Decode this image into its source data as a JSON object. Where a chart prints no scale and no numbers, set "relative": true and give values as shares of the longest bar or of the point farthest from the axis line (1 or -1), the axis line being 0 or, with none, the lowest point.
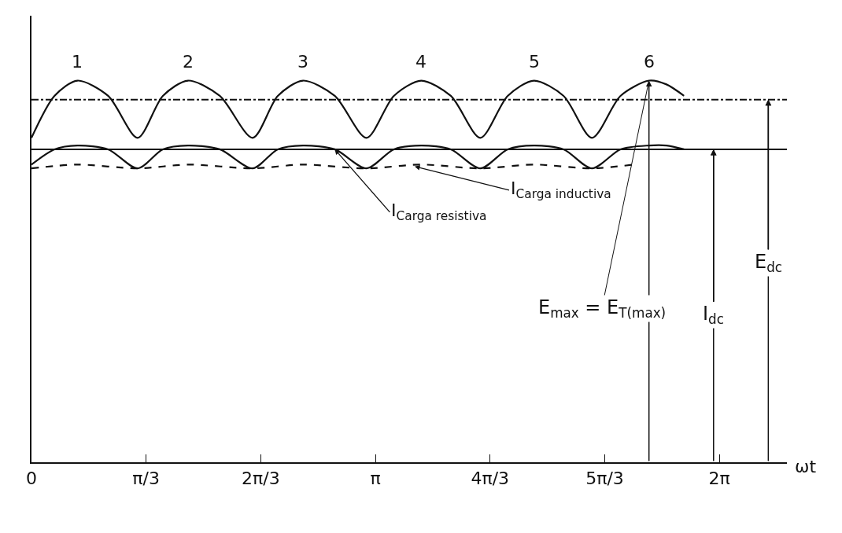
{
  "chart_data": {
    "type": "line",
    "relative": true,
    "xlabel": "ωt",
    "xlim": [
      0,
      6.9
    ],
    "xticks": [
      0,
      {
        "value": 1.0472,
        "label": "π/3"
      },
      {
        "value": 2.0944,
        "label": "2π/3"
      },
      {
        "value": 3.1416,
        "label": "π"
      },
      {
        "value": 4.1888,
        "label": "4π/3"
      },
      {
        "value": 5.236,
        "label": "5π/3"
      },
      {
        "value": 6.2832,
        "label": "2π"
      }
    ],
    "tick_labels": "x",
    "grid": false,
    "marker": "none",
    "series": [
      {
        "color": "#111111",
        "line_style": "solid",
        "x": [
          0,
          0.21,
          0.42,
          0.7,
          0.97,
          1.2,
          1.43,
          1.72,
          2.02,
          2.25,
          2.48,
          2.77,
          3.06,
          3.31,
          3.56,
          3.83,
          4.1,
          4.35,
          4.59,
          4.86,
          5.12,
          5.38,
          5.64,
          5.8,
          5.96
        ],
        "values": [
          0.85,
          0.96,
          1,
          0.96,
          0.85,
          0.96,
          1,
          0.96,
          0.85,
          0.96,
          1,
          0.96,
          0.85,
          0.96,
          1,
          0.96,
          0.85,
          0.96,
          1,
          0.96,
          0.85,
          0.96,
          1,
          0.99,
          0.96
        ]
      },
      {
        "color": "#111111",
        "line_style": "solid",
        "x": [
          0,
          0.21,
          0.42,
          0.7,
          0.97,
          1.2,
          1.43,
          1.72,
          2.02,
          2.25,
          2.48,
          2.77,
          3.06,
          3.31,
          3.56,
          3.83,
          4.1,
          4.35,
          4.59,
          4.86,
          5.12,
          5.38,
          5.64,
          5.8,
          5.96
        ],
        "values": [
          0.78,
          0.82,
          0.83,
          0.82,
          0.77,
          0.82,
          0.83,
          0.82,
          0.77,
          0.82,
          0.83,
          0.82,
          0.77,
          0.82,
          0.83,
          0.82,
          0.77,
          0.82,
          0.83,
          0.82,
          0.77,
          0.82,
          0.83,
          0.83,
          0.82
        ]
      },
      {
        "color": "#111111",
        "line_style": "dashed",
        "x": [
          0,
          0.42,
          0.97,
          1.43,
          2.02,
          2.48,
          3.06,
          3.56,
          4.1,
          4.59,
          5.12,
          5.5
        ],
        "values": [
          0.77,
          0.78,
          0.77,
          0.78,
          0.77,
          0.78,
          0.77,
          0.78,
          0.77,
          0.78,
          0.77,
          0.78
        ]
      }
    ],
    "ref_lines": [
      {
        "axis": "y",
        "value": 0.95,
        "label": "E$_{dc}$",
        "line_style": "dashdot",
        "color": "#111111"
      },
      {
        "axis": "y",
        "value": 0.82,
        "label": "I$_{dc}$",
        "line_style": "solid",
        "color": "#111111"
      }
    ],
    "annotations": [
      {
        "text": "1",
        "x": 0.42,
        "y": 1
      },
      {
        "text": "2",
        "x": 1.43,
        "y": 1
      },
      {
        "text": "3",
        "x": 2.48,
        "y": 1
      },
      {
        "text": "4",
        "x": 3.56,
        "y": 1
      },
      {
        "text": "5",
        "x": 4.59,
        "y": 1
      },
      {
        "text": "6",
        "x": 5.64,
        "y": 1
      },
      {
        "text": "I$_{Carga inductiva}$",
        "x": 3.5,
        "y": 0.775
      },
      {
        "text": "I$_{Carga resistiva}$",
        "x": 2.77,
        "y": 0.82
      },
      {
        "text": "E$_{max}$ = E$_{T(max)}$",
        "x": 5.64,
        "y": 1
      }
    ]
  }
}
